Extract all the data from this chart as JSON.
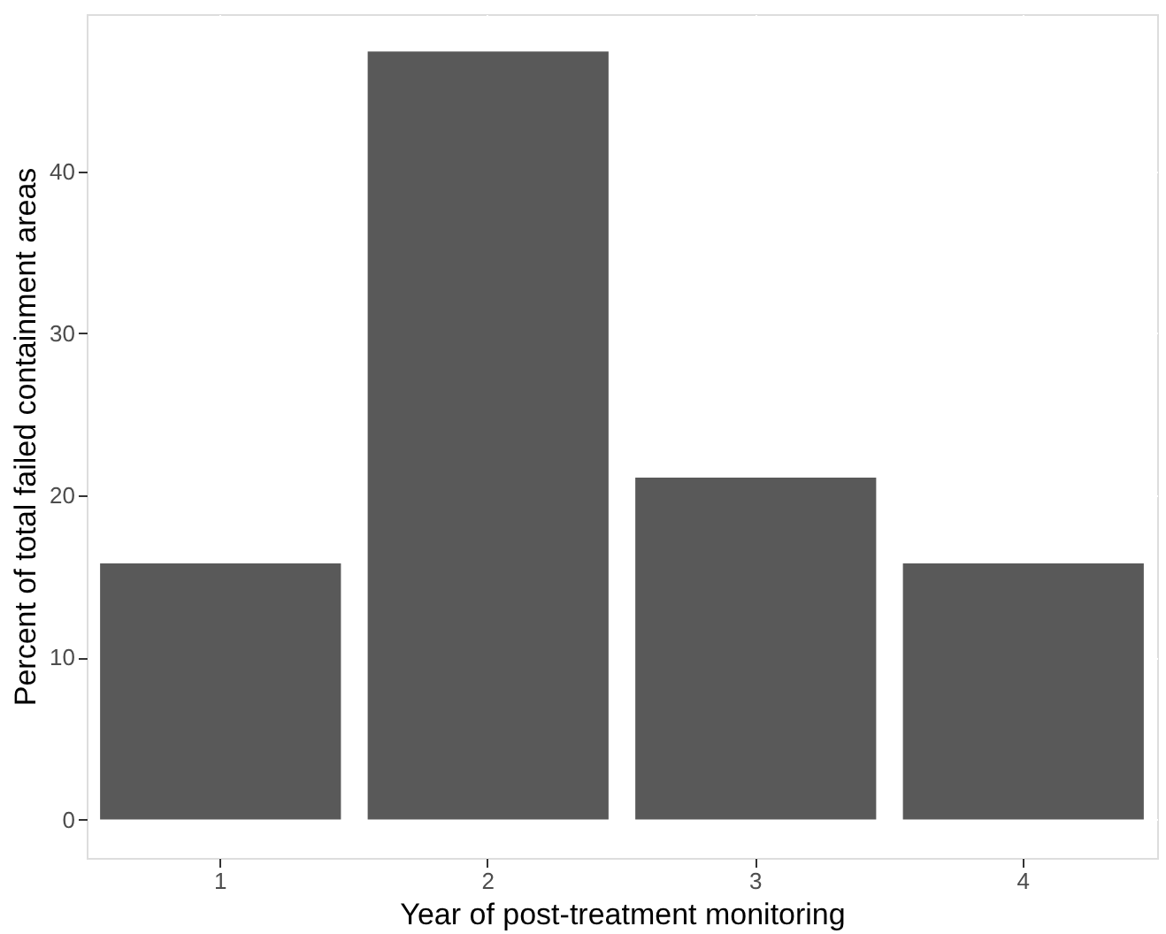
{
  "chart_data": {
    "type": "bar",
    "xlabel": "Year of post-treatment monitoring",
    "ylabel": "Percent of total failed containment areas",
    "categories": [
      "1",
      "2",
      "3",
      "4"
    ],
    "values": [
      15.8,
      47.4,
      21.1,
      15.8
    ],
    "color": "#595959",
    "ylim": [
      -2.37,
      49.7
    ],
    "yticks": [
      0,
      10,
      20,
      30,
      40
    ],
    "grid": true
  }
}
